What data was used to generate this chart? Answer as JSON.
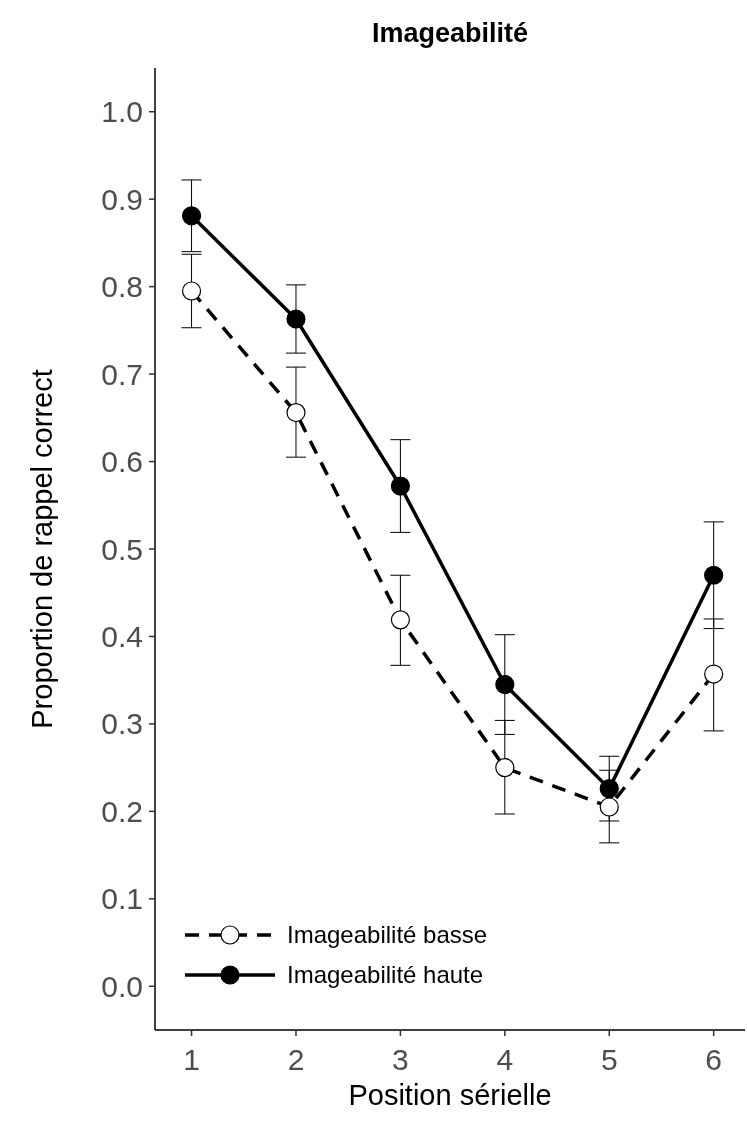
{
  "chart_data": {
    "type": "line",
    "title": "Imageabilité",
    "xlabel": "Position sérielle",
    "ylabel": "Proportion de rappel correct",
    "x": [
      1,
      2,
      3,
      4,
      5,
      6
    ],
    "xlim": [
      0.65,
      6.3
    ],
    "xticks": [
      1,
      2,
      3,
      4,
      5,
      6
    ],
    "ylim": [
      -0.05,
      1.05
    ],
    "yticks": [
      {
        "value": 0,
        "label": "0.0"
      },
      0.1,
      0.2,
      0.3,
      0.4,
      0.5,
      0.6,
      0.7,
      0.8,
      0.9,
      {
        "value": 1,
        "label": "1.0"
      }
    ],
    "grid": false,
    "legend": "bottom left",
    "marker": "circle",
    "series": [
      {
        "name": "Imageabilité basse",
        "color": "#ffffff",
        "line_style": "dashed",
        "values": [
          0.795,
          0.656,
          0.419,
          0.25,
          0.205,
          0.357
        ],
        "errors": [
          [
            0.753,
            0.837
          ],
          [
            0.605,
            0.708
          ],
          [
            0.367,
            0.47
          ],
          [
            0.197,
            0.304
          ],
          [
            0.164,
            0.247
          ],
          [
            0.292,
            0.42
          ]
        ]
      },
      {
        "name": "Imageabilité haute",
        "color": "#000000",
        "line_style": "solid",
        "values": [
          0.881,
          0.763,
          0.572,
          0.345,
          0.226,
          0.47
        ],
        "errors": [
          [
            0.84,
            0.922
          ],
          [
            0.724,
            0.802
          ],
          [
            0.519,
            0.625
          ],
          [
            0.288,
            0.402
          ],
          [
            0.189,
            0.263
          ],
          [
            0.409,
            0.531
          ]
        ]
      }
    ]
  }
}
